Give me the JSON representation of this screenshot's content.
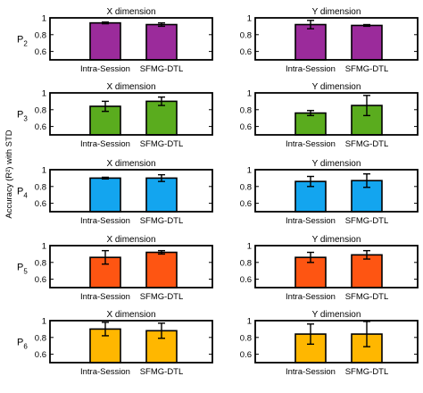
{
  "figure": {
    "ylabel": "Accuracy (R²) with STD"
  },
  "chart_data": {
    "type": "bar",
    "categories": [
      "Intra-Session",
      "SFMG-DTL"
    ],
    "ylim": [
      0.5,
      1.0
    ],
    "yticks": [
      "0.6",
      "0.8",
      "1"
    ],
    "grid": false,
    "error_bars": "std",
    "rows": [
      {
        "label": "P",
        "subscript": "2",
        "color": "#9b2b9b",
        "panels": [
          {
            "title": "X dimension",
            "values": [
              0.94,
              0.92
            ],
            "std": [
              0.01,
              0.02
            ]
          },
          {
            "title": "Y dimension",
            "values": [
              0.92,
              0.91
            ],
            "std": [
              0.05,
              0.01
            ]
          }
        ]
      },
      {
        "label": "P",
        "subscript": "3",
        "color": "#5aac1e",
        "panels": [
          {
            "title": "X dimension",
            "values": [
              0.84,
              0.9
            ],
            "std": [
              0.06,
              0.05
            ]
          },
          {
            "title": "Y dimension",
            "values": [
              0.76,
              0.85
            ],
            "std": [
              0.03,
              0.12
            ]
          }
        ]
      },
      {
        "label": "P",
        "subscript": "4",
        "color": "#13a5ef",
        "panels": [
          {
            "title": "X dimension",
            "values": [
              0.9,
              0.9
            ],
            "std": [
              0.01,
              0.04
            ]
          },
          {
            "title": "Y dimension",
            "values": [
              0.86,
              0.87
            ],
            "std": [
              0.06,
              0.08
            ]
          }
        ]
      },
      {
        "label": "P",
        "subscript": "5",
        "color": "#fe5512",
        "panels": [
          {
            "title": "X dimension",
            "values": [
              0.86,
              0.92
            ],
            "std": [
              0.08,
              0.02
            ]
          },
          {
            "title": "Y dimension",
            "values": [
              0.86,
              0.89
            ],
            "std": [
              0.06,
              0.05
            ]
          }
        ]
      },
      {
        "label": "P",
        "subscript": "6",
        "color": "#ffb700",
        "panels": [
          {
            "title": "X dimension",
            "values": [
              0.9,
              0.88
            ],
            "std": [
              0.08,
              0.09
            ]
          },
          {
            "title": "Y dimension",
            "values": [
              0.84,
              0.84
            ],
            "std": [
              0.12,
              0.15
            ]
          }
        ]
      }
    ]
  }
}
